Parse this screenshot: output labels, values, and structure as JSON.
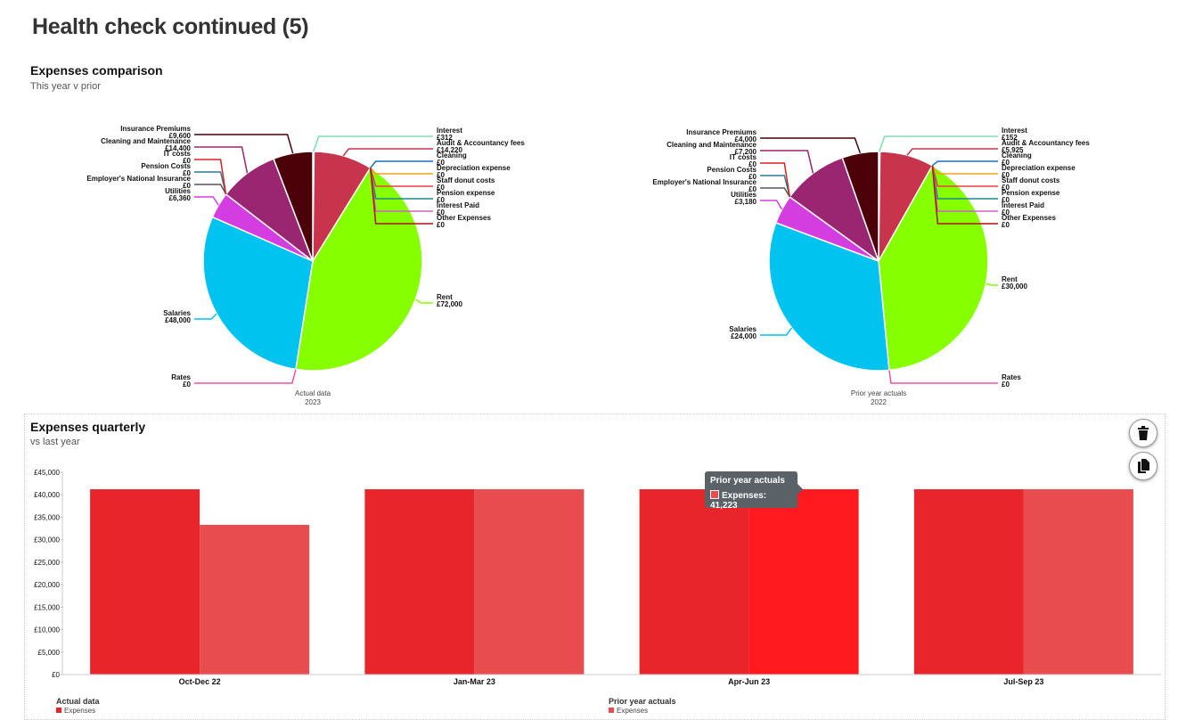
{
  "page": {
    "title": "Health check continued (5)"
  },
  "expenses_comparison": {
    "title": "Expenses comparison",
    "subtitle": "This year v prior"
  },
  "expenses_quarterly": {
    "title": "Expenses quarterly",
    "subtitle": "vs last year",
    "delete_icon": "trash-icon",
    "duplicate_icon": "duplicate-icon"
  },
  "tooltip": {
    "title": "Prior year actuals",
    "text": "Expenses: 41,223"
  },
  "legend": [
    {
      "title": "Actual data",
      "item": "Expenses",
      "color": "#e8252b"
    },
    {
      "title": "Prior year actuals",
      "item": "Expenses",
      "color": "#e84c4f"
    }
  ],
  "chart_data": [
    {
      "type": "pie",
      "caption": [
        "Actual data",
        "2023"
      ],
      "slices": [
        {
          "label": "Interest",
          "value_label": "£312",
          "value": 312,
          "color": "#7fe0a8"
        },
        {
          "label": "Audit & Accountancy fees",
          "value_label": "£14,220",
          "value": 14220,
          "color": "#c8344b"
        },
        {
          "label": "Cleaning",
          "value_label": "£0",
          "value": 0,
          "color": "#1f6fbf"
        },
        {
          "label": "Depreciation expense",
          "value_label": "£0",
          "value": 0,
          "color": "#f0a020"
        },
        {
          "label": "Staff donut costs",
          "value_label": "£0",
          "value": 0,
          "color": "#e84040"
        },
        {
          "label": "Pension expense",
          "value_label": "£0",
          "value": 0,
          "color": "#1a8a8a"
        },
        {
          "label": "Interest Paid",
          "value_label": "£0",
          "value": 0,
          "color": "#d060c0"
        },
        {
          "label": "Other Expenses",
          "value_label": "£0",
          "value": 0,
          "color": "#b01010"
        },
        {
          "label": "Rent",
          "value_label": "£72,000",
          "value": 72000,
          "color": "#86ff00"
        },
        {
          "label": "Rates",
          "value_label": "£0",
          "value": 0,
          "color": "#f050a0"
        },
        {
          "label": "Salaries",
          "value_label": "£48,000",
          "value": 48000,
          "color": "#00c3f0"
        },
        {
          "label": "Utilities",
          "value_label": "£6,360",
          "value": 6360,
          "color": "#d43ee0"
        },
        {
          "label": "Employer's National Insurance",
          "value_label": "£0",
          "value": 0,
          "color": "#555555"
        },
        {
          "label": "Pension Costs",
          "value_label": "£0",
          "value": 0,
          "color": "#2a7a9a"
        },
        {
          "label": "IT costs",
          "value_label": "£0",
          "value": 0,
          "color": "#e02020"
        },
        {
          "label": "Cleaning and Maintenance",
          "value_label": "£14,400",
          "value": 14400,
          "color": "#9a2570"
        },
        {
          "label": "Insurance Premiums",
          "value_label": "£9,600",
          "value": 9600,
          "color": "#4c0008"
        }
      ]
    },
    {
      "type": "pie",
      "caption": [
        "Prior year actuals",
        "2022"
      ],
      "slices": [
        {
          "label": "Interest",
          "value_label": "£152",
          "value": 152,
          "color": "#7fe0a8"
        },
        {
          "label": "Audit & Accountancy fees",
          "value_label": "£5,925",
          "value": 5925,
          "color": "#c8344b"
        },
        {
          "label": "Cleaning",
          "value_label": "£0",
          "value": 0,
          "color": "#1f6fbf"
        },
        {
          "label": "Depreciation expense",
          "value_label": "£0",
          "value": 0,
          "color": "#f0a020"
        },
        {
          "label": "Staff donut costs",
          "value_label": "£0",
          "value": 0,
          "color": "#e84040"
        },
        {
          "label": "Pension expense",
          "value_label": "£0",
          "value": 0,
          "color": "#1a8a8a"
        },
        {
          "label": "Interest Paid",
          "value_label": "£0",
          "value": 0,
          "color": "#d060c0"
        },
        {
          "label": "Other Expenses",
          "value_label": "£0",
          "value": 0,
          "color": "#b01010"
        },
        {
          "label": "Rent",
          "value_label": "£30,000",
          "value": 30000,
          "color": "#86ff00"
        },
        {
          "label": "Rates",
          "value_label": "£0",
          "value": 0,
          "color": "#f050a0"
        },
        {
          "label": "Salaries",
          "value_label": "£24,000",
          "value": 24000,
          "color": "#00c3f0"
        },
        {
          "label": "Utilities",
          "value_label": "£3,180",
          "value": 3180,
          "color": "#d43ee0"
        },
        {
          "label": "Employer's National Insurance",
          "value_label": "£0",
          "value": 0,
          "color": "#555555"
        },
        {
          "label": "Pension Costs",
          "value_label": "£0",
          "value": 0,
          "color": "#2a7a9a"
        },
        {
          "label": "IT costs",
          "value_label": "£0",
          "value": 0,
          "color": "#e02020"
        },
        {
          "label": "Cleaning and Maintenance",
          "value_label": "£7,200",
          "value": 7200,
          "color": "#9a2570"
        },
        {
          "label": "Insurance Premiums",
          "value_label": "£4,000",
          "value": 4000,
          "color": "#4c0008"
        }
      ]
    },
    {
      "type": "bar",
      "categories": [
        "Oct-Dec 22",
        "Jan-Mar 23",
        "Apr-Jun 23",
        "Jul-Sep 23"
      ],
      "series": [
        {
          "name": "Actual data",
          "values": [
            41223,
            41223,
            41223,
            41223
          ],
          "color": "#e8252b"
        },
        {
          "name": "Prior year actuals",
          "values": [
            33300,
            41223,
            41223,
            41223
          ],
          "color": "#e84c4f"
        }
      ],
      "highlight": {
        "series": 1,
        "index": 2,
        "color": "#ff1a20"
      },
      "ylim": [
        0,
        45000
      ],
      "yticks": [
        "£0",
        "£5,000",
        "£10,000",
        "£15,000",
        "£20,000",
        "£25,000",
        "£30,000",
        "£35,000",
        "£40,000",
        "£45,000"
      ],
      "ytick_values": [
        0,
        5000,
        10000,
        15000,
        20000,
        25000,
        30000,
        35000,
        40000,
        45000
      ],
      "grid": false
    }
  ]
}
